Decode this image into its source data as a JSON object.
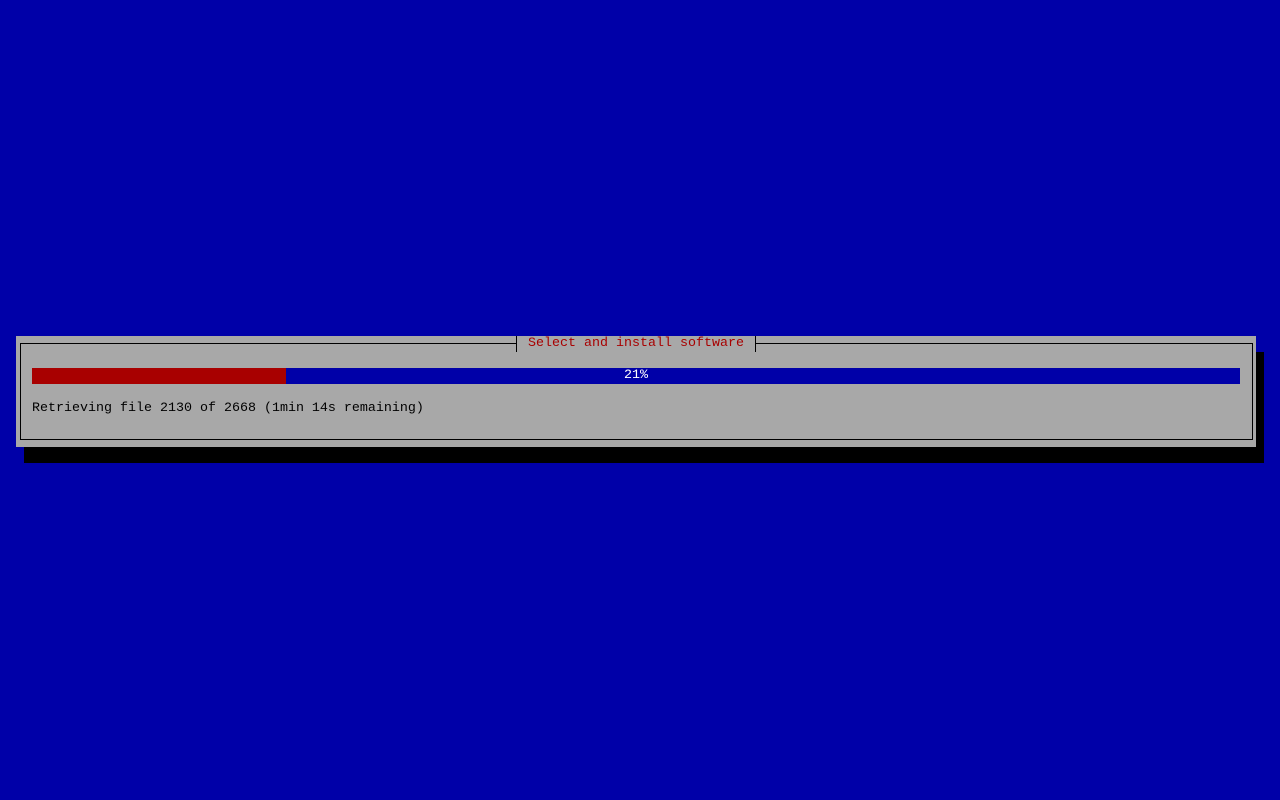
{
  "dialog": {
    "title": "Select and install software",
    "progress": {
      "percent": 21,
      "label": "21%"
    },
    "status": "Retrieving file 2130 of 2668 (1min 14s remaining)"
  },
  "colors": {
    "background": "#0000a8",
    "dialog": "#a8a8a8",
    "progress_fill": "#a80000",
    "title": "#a80000"
  }
}
